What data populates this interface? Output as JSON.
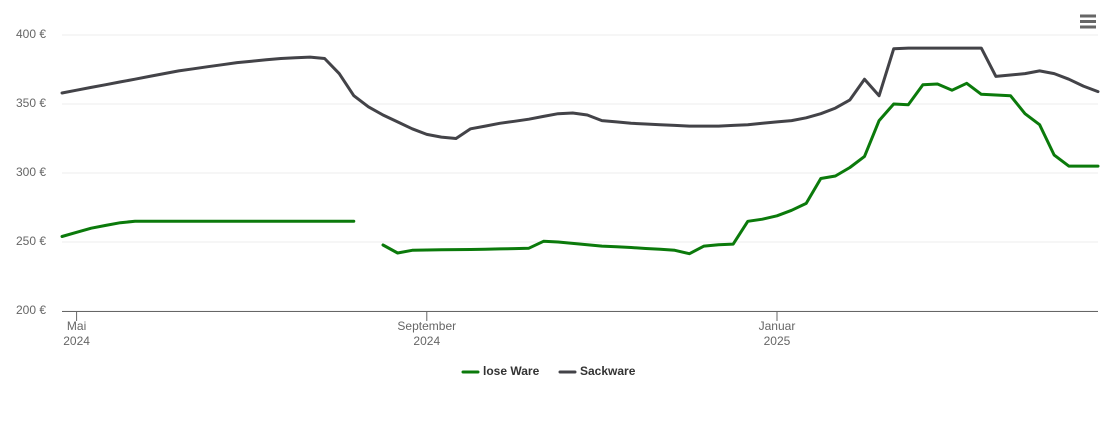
{
  "chart_data": {
    "type": "line",
    "categories": [
      null,
      "Mai\n2024",
      null,
      null,
      null,
      null,
      null,
      null,
      null,
      null,
      null,
      null,
      null,
      null,
      null,
      null,
      null,
      null,
      null,
      null,
      null,
      null,
      null,
      null,
      null,
      "September\n2024",
      null,
      null,
      null,
      null,
      null,
      null,
      null,
      null,
      null,
      null,
      null,
      null,
      null,
      null,
      null,
      null,
      null,
      null,
      null,
      null,
      null,
      null,
      null,
      "Januar\n2025",
      null,
      null,
      null,
      null,
      null,
      null,
      null,
      null,
      null,
      null,
      null,
      null,
      null,
      null,
      null,
      null,
      null,
      null,
      null,
      null,
      null,
      null
    ],
    "series": [
      {
        "name": "lose Ware",
        "color": "#0b7a0b",
        "values": [
          254,
          257,
          260,
          262,
          264,
          265,
          265,
          265,
          265,
          265,
          265,
          265,
          265,
          265,
          265,
          265,
          265,
          265,
          265,
          265,
          265,
          null,
          247.8,
          242,
          244,
          244.2,
          244.4,
          244.5,
          244.6,
          244.8,
          245,
          245.2,
          245.5,
          250.5,
          250,
          249,
          248,
          247,
          246.5,
          246,
          245.3,
          244.7,
          244,
          241.5,
          247,
          248,
          248.5,
          265,
          266.5,
          269,
          273,
          278,
          296,
          297.8,
          304,
          312,
          338,
          350,
          349.5,
          364,
          364.5,
          360,
          365,
          357,
          356.5,
          356,
          343,
          335,
          313,
          305,
          305,
          305
        ]
      },
      {
        "name": "Sackware",
        "color": "#434348",
        "values": [
          358,
          360,
          362,
          364,
          366,
          368,
          370,
          372,
          374,
          375.5,
          377,
          378.5,
          380,
          381,
          382,
          383,
          383.5,
          384,
          383,
          372,
          356,
          348,
          342,
          337,
          332,
          328,
          326,
          325,
          332,
          334,
          336,
          337.5,
          339,
          341,
          343,
          343.5,
          342,
          338,
          337,
          336,
          335.5,
          335,
          334.5,
          334,
          334,
          334,
          334.5,
          335,
          336,
          337,
          338,
          340,
          343,
          347,
          353,
          368,
          356,
          390,
          390.5,
          390.5,
          390.5,
          390.5,
          390.5,
          390.5,
          370,
          371,
          372,
          374,
          372,
          368,
          363,
          359
        ]
      }
    ],
    "ylim": [
      200,
      400
    ],
    "yticks": [
      {
        "value": 200,
        "label": "200 €"
      },
      {
        "value": 250,
        "label": "250 €"
      },
      {
        "value": 300,
        "label": "300 €"
      },
      {
        "value": 350,
        "label": "350 €"
      },
      {
        "value": 400,
        "label": "400 €"
      }
    ],
    "grid": true
  }
}
